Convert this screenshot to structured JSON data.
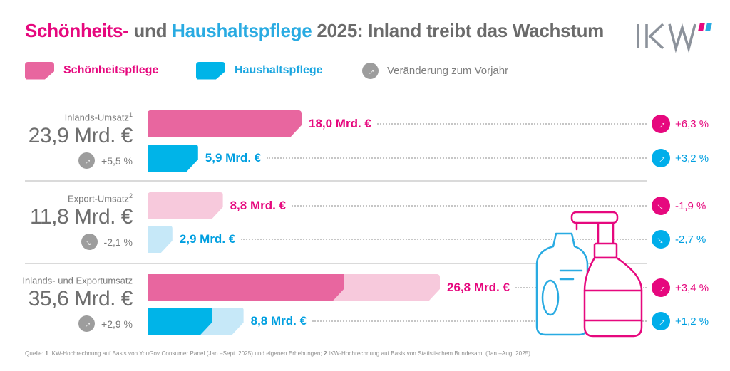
{
  "title": {
    "beauty": "Schönheits-",
    "mid": " und ",
    "household": "Haushaltspflege",
    "rest": " 2025: Inland treibt das Wachstum"
  },
  "logo": {
    "name": "IKW"
  },
  "legend": {
    "beauty": "Schönheitspflege",
    "household": "Haushaltspflege",
    "change": "Veränderung zum Vorjahr"
  },
  "colors": {
    "pink_accent": "#e6087e",
    "pink_bar": "#e8669f",
    "pink_light": "#f7c9dc",
    "blue_accent": "#009fe0",
    "blue_bar": "#00b4e8",
    "blue_light": "#c6e8f8",
    "gray_text": "#6e6e6e",
    "gray_badge": "#9d9d9d"
  },
  "chart_data": {
    "type": "bar",
    "unit": "Mrd. €",
    "series": [
      "Schönheitspflege",
      "Haushaltspflege"
    ],
    "legend_position": "top",
    "groups": [
      {
        "label": "Inlands-Umsatz",
        "footnote_mark": "1",
        "total_label": "23,9 Mrd. €",
        "total_value": 23.9,
        "total_change": "+5,5 %",
        "total_direction": "up",
        "bars": [
          {
            "series": "Schönheitspflege",
            "value": 18.0,
            "value_label": "18,0 Mrd. €",
            "change": "+6,3 %",
            "direction": "up"
          },
          {
            "series": "Haushaltspflege",
            "value": 5.9,
            "value_label": "5,9 Mrd. €",
            "change": "+3,2 %",
            "direction": "up"
          }
        ]
      },
      {
        "label": "Export-Umsatz",
        "footnote_mark": "2",
        "total_label": "11,8 Mrd. €",
        "total_value": 11.8,
        "total_change": "-2,1 %",
        "total_direction": "down",
        "bars": [
          {
            "series": "Schönheitspflege",
            "value": 8.8,
            "value_label": "8,8 Mrd. €",
            "change": "-1,9 %",
            "direction": "down"
          },
          {
            "series": "Haushaltspflege",
            "value": 2.9,
            "value_label": "2,9 Mrd. €",
            "change": "-2,7 %",
            "direction": "down"
          }
        ]
      },
      {
        "label": "Inlands- und Exportumsatz",
        "footnote_mark": "",
        "total_label": "35,6 Mrd. €",
        "total_value": 35.6,
        "total_change": "+2,9 %",
        "total_direction": "up",
        "bars": [
          {
            "series": "Schönheitspflege",
            "segments": [
              18.0,
              8.8
            ],
            "value": 26.8,
            "value_label": "26,8 Mrd. €",
            "change": "+3,4 %",
            "direction": "up"
          },
          {
            "series": "Haushaltspflege",
            "segments": [
              5.9,
              2.9
            ],
            "value": 8.8,
            "value_label": "8,8 Mrd. €",
            "change": "+1,2 %",
            "direction": "up"
          }
        ]
      }
    ]
  },
  "footnote": {
    "prefix": "Quelle: ",
    "mark1": "1",
    "text1": " IKW-Hochrechnung auf Basis von YouGov Consumer Panel (Jan.–Sept. 2025) und eigenen Erhebungen; ",
    "mark2": "2",
    "text2": " IKW-Hochrechnung auf Basis von Statistischem Bundesamt (Jan.–Aug. 2025)"
  }
}
